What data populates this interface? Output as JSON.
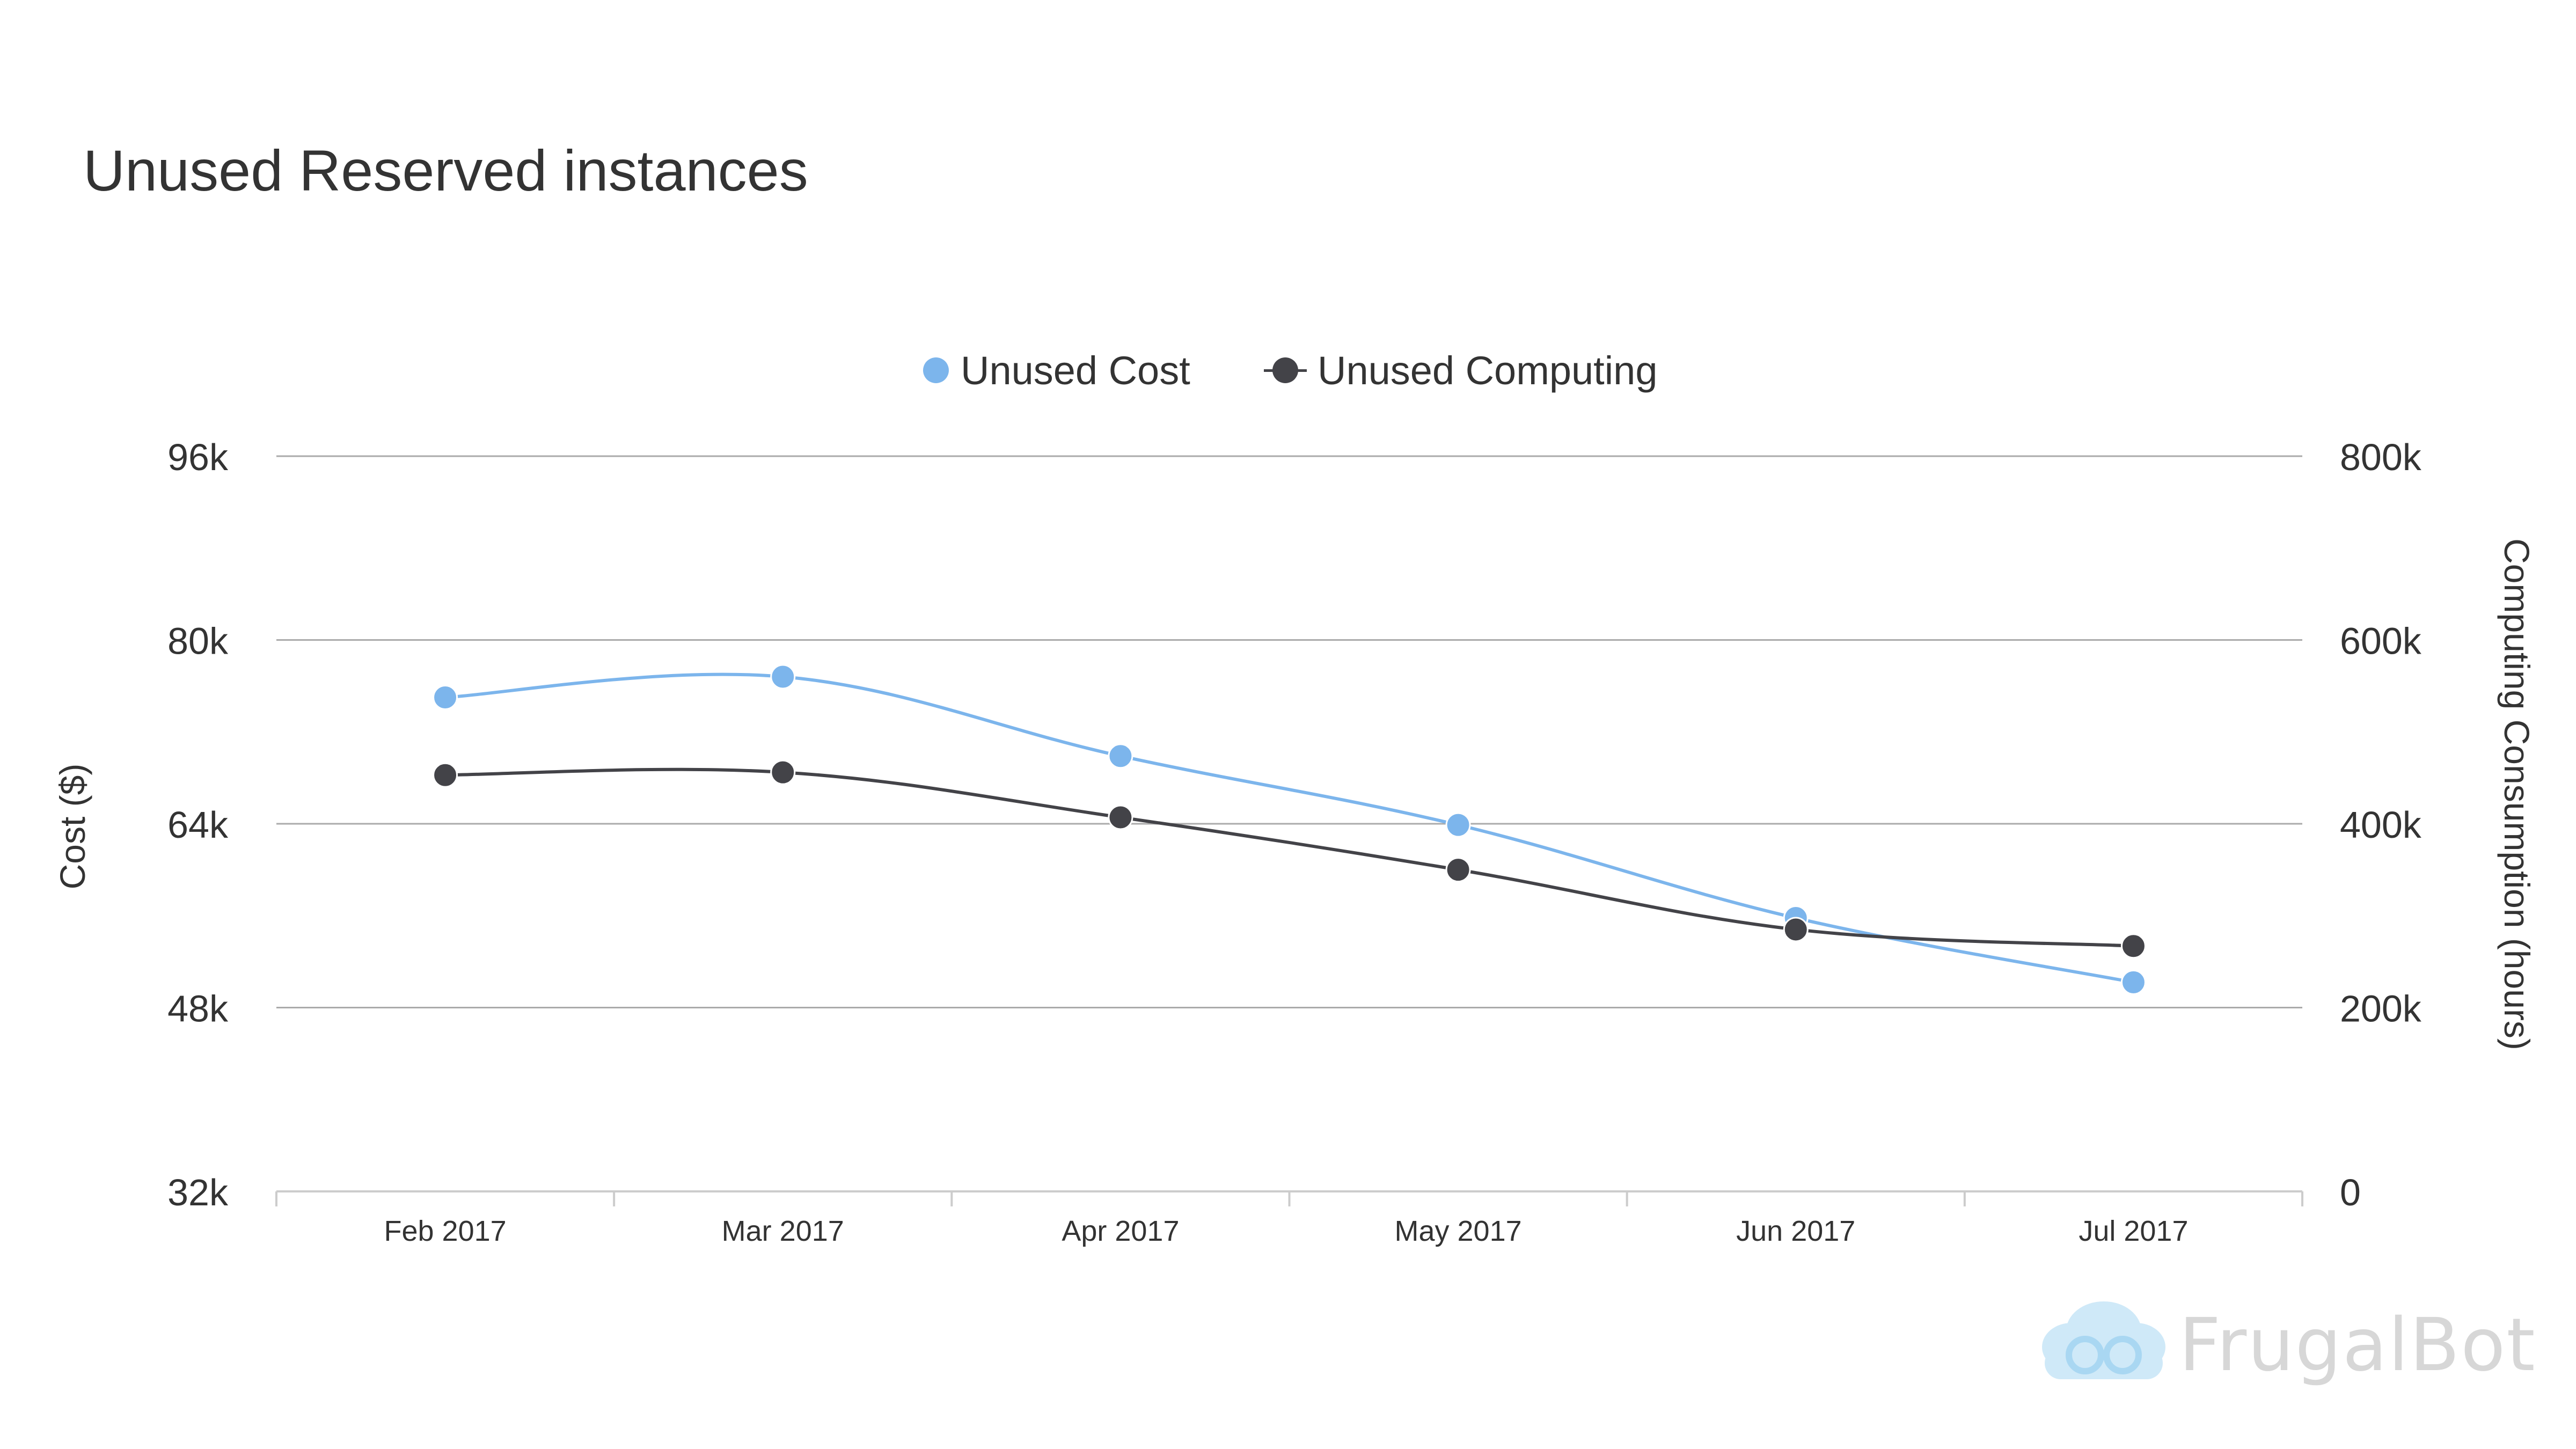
{
  "title": "Unused Reserved instances",
  "brand": "FrugalBot",
  "colors": {
    "cost": "#7cb5ec",
    "computing": "#434348",
    "grid": "#aaaaaa",
    "axis_text": "#333333"
  },
  "legend": [
    {
      "label": "Unused Cost",
      "color": "#7cb5ec",
      "marker": "dot"
    },
    {
      "label": "Unused Computing",
      "color": "#434348",
      "marker": "line-dot"
    }
  ],
  "chart_data": {
    "type": "line",
    "categories": [
      "Feb 2017",
      "Mar 2017",
      "Apr 2017",
      "May 2017",
      "Jun 2017",
      "Jul 2017"
    ],
    "series": [
      {
        "name": "Unused Cost",
        "axis": "left",
        "color": "#7cb5ec",
        "values": [
          75000,
          76800,
          69900,
          63900,
          55800,
          50200
        ]
      },
      {
        "name": "Unused Computing",
        "axis": "right",
        "color": "#434348",
        "values": [
          453000,
          456000,
          407000,
          350000,
          285000,
          267000
        ]
      }
    ],
    "y_left": {
      "label": "Cost ($)",
      "min": 32000,
      "max": 96000,
      "ticks": [
        32000,
        48000,
        64000,
        80000,
        96000
      ],
      "tick_labels": [
        "32k",
        "48k",
        "64k",
        "80k",
        "96k"
      ]
    },
    "y_right": {
      "label": "Computing Consumption (hours)",
      "min": 0,
      "max": 800000,
      "ticks": [
        0,
        200000,
        400000,
        600000,
        800000
      ],
      "tick_labels": [
        "0",
        "200k",
        "400k",
        "600k",
        "800k"
      ]
    },
    "grid": true,
    "legend_position": "top-center"
  }
}
